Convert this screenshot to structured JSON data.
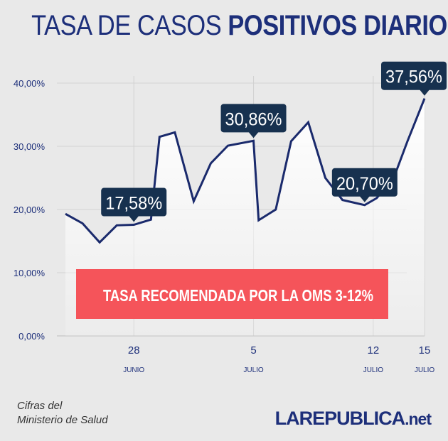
{
  "header": {
    "title_regular": "TASA DE CASOS",
    "title_bold": "POSITIVOS DIARIOS"
  },
  "chart_data": {
    "type": "area",
    "title": "TASA DE CASOS POSITIVOS DIARIOS",
    "ylim": [
      0,
      40
    ],
    "yticks": [
      "0,00%",
      "10,00%",
      "20,00%",
      "30,00%",
      "40,00%"
    ],
    "xtick_labels": [
      {
        "day": "28",
        "month": "JUNIO",
        "x": 23
      },
      {
        "day": "5",
        "month": "JULIO",
        "x": 30
      },
      {
        "day": "12",
        "month": "JULIO",
        "x": 37
      },
      {
        "day": "15",
        "month": "JULIO",
        "x": 40
      }
    ],
    "xlim": [
      18.5,
      40
    ],
    "series": [
      {
        "values": [
          [
            19,
            19.3
          ],
          [
            20,
            17.8
          ],
          [
            21,
            14.8
          ],
          [
            22,
            17.5
          ],
          [
            23,
            17.58
          ],
          [
            24,
            18.4
          ],
          [
            24.5,
            31.5
          ],
          [
            25.4,
            32.2
          ],
          [
            26.5,
            21.3
          ],
          [
            27.5,
            27.3
          ],
          [
            28.5,
            30.1
          ],
          [
            30,
            30.86
          ],
          [
            30.3,
            18.3
          ],
          [
            31.3,
            20.0
          ],
          [
            32.2,
            30.8
          ],
          [
            33.2,
            33.8
          ],
          [
            34.2,
            25.0
          ],
          [
            35.2,
            21.5
          ],
          [
            36.5,
            20.7
          ],
          [
            37.2,
            21.8
          ],
          [
            38.2,
            25.0
          ],
          [
            39,
            30.8
          ],
          [
            40,
            37.56
          ]
        ]
      }
    ],
    "callouts": [
      {
        "label": "17,58%",
        "x": 23,
        "y": 17.58
      },
      {
        "label": "30,86%",
        "x": 30,
        "y": 30.86
      },
      {
        "label": "20,70%",
        "x": 36.5,
        "y": 20.7
      },
      {
        "label": "37,56%",
        "x": 40,
        "y": 37.56
      }
    ],
    "annotation": "TASA RECOMENDADA POR LA OMS 3-12%",
    "colors": {
      "line": "#1a2a6c",
      "callout_bg": "#17314f",
      "band": "#f5545a",
      "title": "#1d2f7a"
    },
    "grid": true
  },
  "footer": {
    "source_line1": "Cifras del",
    "source_line2": "Ministerio de Salud",
    "logo_main": "LAREPUBLICA",
    "logo_suffix": ".net"
  }
}
